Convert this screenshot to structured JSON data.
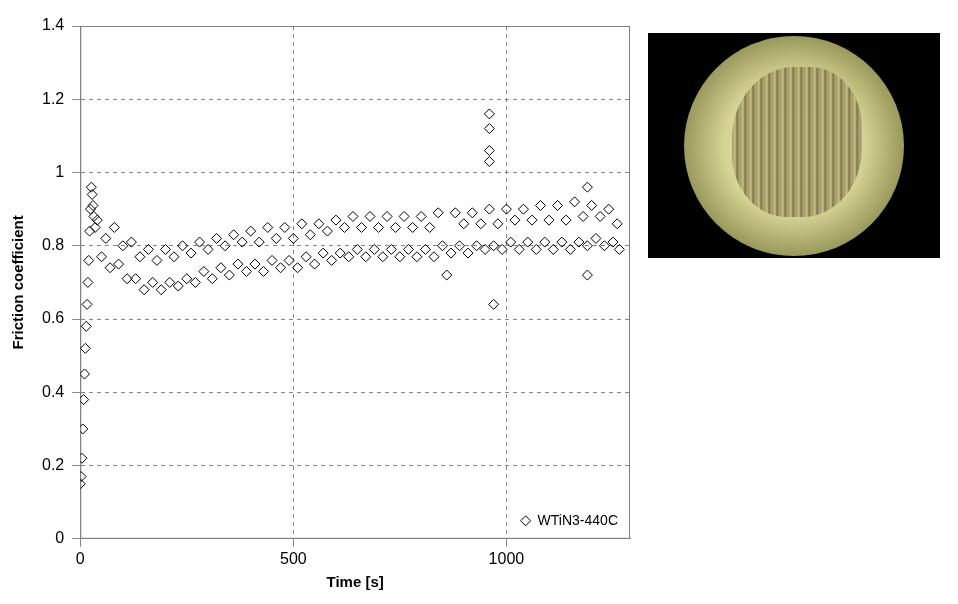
{
  "chart_data": {
    "type": "scatter",
    "x_label": "Time [s]",
    "y_label": "Friction coefficient",
    "x": [
      0,
      2,
      4,
      6,
      8,
      10,
      12,
      14,
      16,
      18,
      20,
      22,
      24,
      26,
      28,
      30,
      32,
      35,
      40,
      50,
      60,
      70,
      80,
      90,
      100,
      110,
      120,
      130,
      140,
      150,
      160,
      170,
      180,
      190,
      200,
      210,
      220,
      230,
      240,
      250,
      260,
      270,
      280,
      290,
      300,
      310,
      320,
      330,
      340,
      350,
      360,
      370,
      380,
      390,
      400,
      410,
      420,
      430,
      440,
      450,
      460,
      470,
      480,
      490,
      500,
      510,
      520,
      530,
      540,
      550,
      560,
      570,
      580,
      590,
      600,
      610,
      620,
      630,
      640,
      650,
      660,
      670,
      680,
      690,
      700,
      710,
      720,
      730,
      740,
      750,
      760,
      770,
      780,
      790,
      800,
      810,
      820,
      830,
      840,
      850,
      860,
      870,
      880,
      890,
      900,
      910,
      920,
      930,
      940,
      950,
      960,
      960,
      960,
      960,
      960,
      970,
      970,
      980,
      990,
      1000,
      1010,
      1020,
      1030,
      1040,
      1050,
      1060,
      1070,
      1080,
      1090,
      1100,
      1110,
      1120,
      1130,
      1140,
      1150,
      1160,
      1170,
      1180,
      1190,
      1190,
      1190,
      1200,
      1210,
      1220,
      1230,
      1240,
      1250,
      1260,
      1265
    ],
    "series": [
      {
        "name": "WTiN3-440C",
        "color": "#000000",
        "marker": "diamond",
        "values": [
          0.15,
          0.17,
          0.22,
          0.3,
          0.38,
          0.45,
          0.52,
          0.58,
          0.64,
          0.7,
          0.76,
          0.84,
          0.9,
          0.96,
          0.94,
          0.91,
          0.88,
          0.85,
          0.87,
          0.77,
          0.82,
          0.74,
          0.85,
          0.75,
          0.8,
          0.71,
          0.81,
          0.71,
          0.77,
          0.68,
          0.79,
          0.7,
          0.76,
          0.68,
          0.79,
          0.7,
          0.77,
          0.69,
          0.8,
          0.71,
          0.78,
          0.7,
          0.81,
          0.73,
          0.79,
          0.71,
          0.82,
          0.74,
          0.8,
          0.72,
          0.83,
          0.75,
          0.81,
          0.73,
          0.84,
          0.75,
          0.81,
          0.73,
          0.85,
          0.76,
          0.82,
          0.74,
          0.85,
          0.76,
          0.82,
          0.74,
          0.86,
          0.77,
          0.83,
          0.75,
          0.86,
          0.78,
          0.84,
          0.76,
          0.87,
          0.78,
          0.85,
          0.77,
          0.88,
          0.79,
          0.85,
          0.77,
          0.88,
          0.79,
          0.85,
          0.77,
          0.88,
          0.79,
          0.85,
          0.77,
          0.88,
          0.79,
          0.85,
          0.77,
          0.88,
          0.79,
          0.85,
          0.77,
          0.89,
          0.8,
          0.72,
          0.78,
          0.89,
          0.8,
          0.86,
          0.78,
          0.89,
          0.8,
          0.86,
          0.79,
          1.16,
          1.12,
          1.06,
          1.03,
          0.9,
          0.64,
          0.8,
          0.86,
          0.79,
          0.9,
          0.81,
          0.87,
          0.79,
          0.9,
          0.81,
          0.87,
          0.79,
          0.91,
          0.81,
          0.87,
          0.79,
          0.91,
          0.81,
          0.87,
          0.79,
          0.92,
          0.81,
          0.88,
          0.96,
          0.72,
          0.8,
          0.91,
          0.82,
          0.88,
          0.8,
          0.9,
          0.81,
          0.86,
          0.79
        ]
      }
    ],
    "xlim": [
      0,
      1290
    ],
    "xticks": [
      0,
      500,
      1000
    ],
    "ylim": [
      0,
      1.4
    ],
    "yticks": [
      0,
      0.2,
      0.4,
      0.6,
      0.8,
      1,
      1.2,
      1.4
    ],
    "grid": true,
    "legend": "lower right"
  }
}
